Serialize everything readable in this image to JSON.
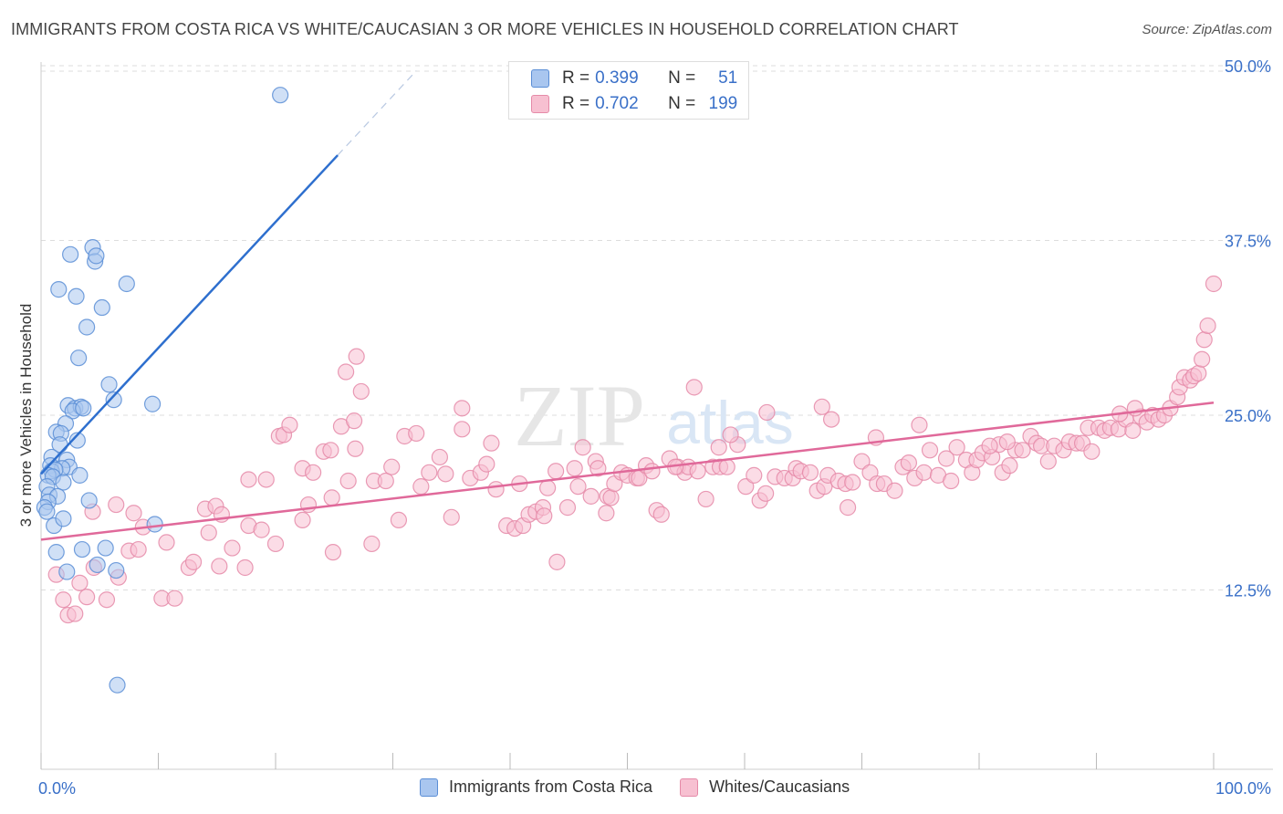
{
  "title": "IMMIGRANTS FROM COSTA RICA VS WHITE/CAUCASIAN 3 OR MORE VEHICLES IN HOUSEHOLD CORRELATION CHART",
  "source": "Source: ZipAtlas.com",
  "watermark": {
    "zip": "ZIP",
    "atlas": "atlas"
  },
  "stats": {
    "r_label": "R =",
    "n_label": "N =",
    "series1": {
      "r": "0.399",
      "n": "51"
    },
    "series2": {
      "r": "0.702",
      "n": "199"
    }
  },
  "colors": {
    "blue_fill": "#a9c6ef",
    "blue_stroke": "#5b8ed6",
    "blue_line": "#2e6fce",
    "pink_fill": "#f7c0d1",
    "pink_stroke": "#e58aa8",
    "pink_line": "#e0699a",
    "grid": "#dddddd",
    "tick_label": "#3a70c8"
  },
  "chart_data": {
    "type": "scatter",
    "title": "IMMIGRANTS FROM COSTA RICA VS WHITE/CAUCASIAN 3 OR MORE VEHICLES IN HOUSEHOLD CORRELATION CHART",
    "xlabel": "",
    "ylabel": "3 or more Vehicles in Household",
    "xlim": [
      0,
      100
    ],
    "ylim": [
      0,
      52
    ],
    "x_tick_labels": [
      "0.0%",
      "100.0%"
    ],
    "y_ticks": [
      12.5,
      25.0,
      37.5,
      50.0
    ],
    "y_tick_labels": [
      "12.5%",
      "25.0%",
      "37.5%",
      "50.0%"
    ],
    "legend_position": "bottom-center",
    "series": [
      {
        "name": "Immigrants from Costa Rica",
        "r": 0.399,
        "n": 51,
        "trend": {
          "x1": 0,
          "y1": 20.8,
          "x2": 25.3,
          "y2": 43.6,
          "dash_to_x": 32.0
        },
        "points": [
          [
            20.4,
            47.9
          ],
          [
            4.4,
            37.0
          ],
          [
            2.5,
            36.5
          ],
          [
            4.6,
            36.0
          ],
          [
            4.7,
            36.4
          ],
          [
            7.3,
            34.4
          ],
          [
            1.5,
            34.0
          ],
          [
            3.0,
            33.5
          ],
          [
            5.2,
            32.7
          ],
          [
            3.9,
            31.3
          ],
          [
            3.2,
            29.1
          ],
          [
            5.8,
            27.2
          ],
          [
            6.2,
            26.1
          ],
          [
            9.5,
            25.8
          ],
          [
            2.3,
            25.7
          ],
          [
            2.9,
            25.5
          ],
          [
            3.4,
            25.6
          ],
          [
            2.7,
            25.3
          ],
          [
            3.6,
            25.5
          ],
          [
            2.1,
            24.4
          ],
          [
            1.3,
            23.8
          ],
          [
            1.7,
            23.7
          ],
          [
            3.1,
            23.2
          ],
          [
            1.6,
            22.9
          ],
          [
            0.9,
            22.0
          ],
          [
            2.2,
            21.8
          ],
          [
            0.8,
            21.4
          ],
          [
            2.4,
            21.3
          ],
          [
            1.8,
            21.2
          ],
          [
            0.9,
            21.0
          ],
          [
            1.2,
            21.1
          ],
          [
            0.6,
            20.7
          ],
          [
            1.0,
            20.6
          ],
          [
            3.3,
            20.7
          ],
          [
            1.9,
            20.2
          ],
          [
            0.5,
            19.9
          ],
          [
            0.7,
            19.3
          ],
          [
            1.4,
            19.2
          ],
          [
            4.1,
            18.9
          ],
          [
            0.6,
            18.8
          ],
          [
            0.3,
            18.4
          ],
          [
            0.5,
            18.1
          ],
          [
            9.7,
            17.2
          ],
          [
            1.1,
            17.1
          ],
          [
            1.9,
            17.6
          ],
          [
            1.3,
            15.2
          ],
          [
            3.5,
            15.4
          ],
          [
            5.5,
            15.5
          ],
          [
            4.8,
            14.3
          ],
          [
            2.2,
            13.8
          ],
          [
            6.4,
            13.9
          ],
          [
            6.5,
            5.7
          ]
        ]
      },
      {
        "name": "Whites/Caucasians",
        "r": 0.702,
        "n": 199,
        "trend": {
          "x1": 0,
          "y1": 16.1,
          "x2": 100,
          "y2": 25.9
        },
        "points": [
          [
            1.3,
            13.6
          ],
          [
            2.3,
            10.7
          ],
          [
            2.9,
            10.8
          ],
          [
            1.9,
            11.8
          ],
          [
            3.3,
            13.0
          ],
          [
            3.9,
            12.0
          ],
          [
            5.6,
            11.8
          ],
          [
            6.6,
            13.4
          ],
          [
            4.5,
            14.1
          ],
          [
            7.5,
            15.3
          ],
          [
            8.3,
            15.4
          ],
          [
            10.3,
            11.9
          ],
          [
            11.4,
            11.9
          ],
          [
            12.6,
            14.1
          ],
          [
            13.0,
            14.5
          ],
          [
            15.2,
            14.2
          ],
          [
            17.4,
            14.1
          ],
          [
            8.7,
            17.0
          ],
          [
            10.7,
            15.9
          ],
          [
            14.3,
            16.6
          ],
          [
            16.3,
            15.5
          ],
          [
            17.7,
            17.1
          ],
          [
            18.8,
            16.8
          ],
          [
            20.0,
            15.8
          ],
          [
            22.3,
            17.5
          ],
          [
            24.9,
            15.2
          ],
          [
            28.2,
            15.8
          ],
          [
            6.4,
            18.6
          ],
          [
            4.4,
            18.1
          ],
          [
            7.9,
            18.0
          ],
          [
            14.0,
            18.3
          ],
          [
            14.9,
            18.5
          ],
          [
            15.4,
            17.9
          ],
          [
            17.7,
            20.4
          ],
          [
            19.2,
            20.4
          ],
          [
            20.3,
            23.5
          ],
          [
            20.7,
            23.6
          ],
          [
            21.2,
            24.3
          ],
          [
            22.3,
            21.2
          ],
          [
            22.8,
            18.6
          ],
          [
            23.2,
            20.9
          ],
          [
            24.1,
            22.4
          ],
          [
            24.7,
            22.5
          ],
          [
            25.6,
            24.2
          ],
          [
            26.0,
            28.1
          ],
          [
            26.9,
            29.2
          ],
          [
            27.3,
            26.7
          ],
          [
            26.7,
            24.6
          ],
          [
            24.8,
            19.1
          ],
          [
            26.2,
            20.3
          ],
          [
            26.8,
            22.6
          ],
          [
            28.4,
            20.3
          ],
          [
            29.4,
            20.3
          ],
          [
            29.9,
            21.3
          ],
          [
            30.5,
            17.5
          ],
          [
            31.0,
            23.5
          ],
          [
            32.0,
            23.7
          ],
          [
            32.4,
            19.9
          ],
          [
            33.1,
            20.9
          ],
          [
            34.0,
            22.0
          ],
          [
            34.5,
            20.8
          ],
          [
            35.0,
            17.7
          ],
          [
            35.9,
            24.0
          ],
          [
            35.9,
            25.5
          ],
          [
            36.6,
            20.5
          ],
          [
            37.5,
            20.9
          ],
          [
            38.0,
            21.5
          ],
          [
            38.4,
            23.0
          ],
          [
            38.8,
            19.7
          ],
          [
            39.7,
            17.1
          ],
          [
            40.4,
            16.9
          ],
          [
            40.8,
            20.1
          ],
          [
            41.1,
            17.1
          ],
          [
            41.6,
            17.9
          ],
          [
            42.2,
            18.1
          ],
          [
            42.8,
            18.4
          ],
          [
            42.9,
            17.8
          ],
          [
            43.2,
            19.8
          ],
          [
            43.9,
            21.0
          ],
          [
            44.0,
            14.5
          ],
          [
            45.5,
            21.2
          ],
          [
            45.8,
            19.9
          ],
          [
            46.2,
            22.7
          ],
          [
            46.9,
            19.2
          ],
          [
            47.3,
            21.7
          ],
          [
            48.3,
            19.2
          ],
          [
            48.6,
            19.1
          ],
          [
            48.9,
            20.1
          ],
          [
            49.5,
            20.9
          ],
          [
            50.0,
            20.7
          ],
          [
            50.8,
            20.5
          ],
          [
            48.2,
            18.0
          ],
          [
            51.0,
            20.5
          ],
          [
            51.6,
            21.4
          ],
          [
            52.1,
            21.0
          ],
          [
            52.5,
            18.2
          ],
          [
            52.9,
            17.9
          ],
          [
            53.6,
            21.9
          ],
          [
            54.3,
            21.3
          ],
          [
            54.9,
            20.9
          ],
          [
            55.2,
            21.3
          ],
          [
            56.0,
            21.0
          ],
          [
            56.7,
            19.0
          ],
          [
            57.3,
            21.3
          ],
          [
            57.9,
            21.3
          ],
          [
            57.8,
            22.7
          ],
          [
            58.5,
            21.3
          ],
          [
            59.4,
            22.9
          ],
          [
            60.1,
            19.9
          ],
          [
            60.8,
            20.7
          ],
          [
            61.3,
            18.9
          ],
          [
            61.8,
            19.4
          ],
          [
            62.6,
            20.6
          ],
          [
            63.4,
            20.5
          ],
          [
            64.1,
            20.5
          ],
          [
            64.4,
            21.2
          ],
          [
            64.8,
            21.0
          ],
          [
            65.6,
            20.9
          ],
          [
            66.2,
            19.6
          ],
          [
            66.8,
            19.9
          ],
          [
            67.1,
            20.7
          ],
          [
            68.0,
            20.3
          ],
          [
            68.6,
            20.1
          ],
          [
            68.8,
            18.4
          ],
          [
            69.2,
            20.2
          ],
          [
            70.0,
            21.7
          ],
          [
            70.7,
            20.9
          ],
          [
            71.3,
            20.1
          ],
          [
            71.9,
            20.1
          ],
          [
            72.8,
            19.6
          ],
          [
            73.5,
            21.3
          ],
          [
            74.0,
            21.6
          ],
          [
            74.5,
            20.5
          ],
          [
            75.3,
            20.9
          ],
          [
            75.8,
            22.5
          ],
          [
            76.5,
            20.7
          ],
          [
            77.2,
            21.9
          ],
          [
            77.6,
            20.3
          ],
          [
            78.1,
            22.7
          ],
          [
            78.9,
            21.8
          ],
          [
            79.4,
            20.9
          ],
          [
            79.8,
            21.8
          ],
          [
            80.3,
            22.3
          ],
          [
            81.1,
            22.0
          ],
          [
            81.7,
            22.9
          ],
          [
            82.0,
            20.9
          ],
          [
            82.6,
            21.4
          ],
          [
            83.1,
            22.5
          ],
          [
            83.7,
            22.5
          ],
          [
            84.4,
            23.5
          ],
          [
            84.9,
            23.0
          ],
          [
            85.3,
            22.8
          ],
          [
            85.9,
            21.7
          ],
          [
            86.4,
            22.8
          ],
          [
            87.2,
            22.5
          ],
          [
            87.7,
            23.1
          ],
          [
            88.3,
            23.0
          ],
          [
            88.8,
            23.0
          ],
          [
            89.3,
            24.1
          ],
          [
            89.6,
            22.4
          ],
          [
            90.2,
            24.1
          ],
          [
            90.7,
            23.9
          ],
          [
            91.2,
            24.1
          ],
          [
            91.9,
            24.0
          ],
          [
            92.5,
            24.7
          ],
          [
            93.1,
            23.9
          ],
          [
            93.8,
            24.9
          ],
          [
            94.3,
            24.5
          ],
          [
            94.8,
            25.0
          ],
          [
            95.3,
            24.7
          ],
          [
            95.8,
            25.0
          ],
          [
            96.3,
            25.5
          ],
          [
            96.9,
            26.3
          ],
          [
            97.1,
            27.0
          ],
          [
            97.5,
            27.7
          ],
          [
            98.0,
            27.5
          ],
          [
            98.3,
            27.8
          ],
          [
            98.7,
            28.0
          ],
          [
            99.0,
            29.0
          ],
          [
            99.2,
            30.4
          ],
          [
            99.5,
            31.4
          ],
          [
            100.0,
            34.4
          ],
          [
            67.4,
            24.7
          ],
          [
            55.7,
            27.0
          ],
          [
            61.9,
            25.2
          ],
          [
            66.6,
            25.6
          ],
          [
            92.0,
            25.1
          ],
          [
            93.3,
            25.5
          ],
          [
            74.9,
            24.3
          ],
          [
            71.2,
            23.4
          ],
          [
            82.4,
            23.1
          ],
          [
            80.9,
            22.8
          ],
          [
            58.8,
            23.6
          ],
          [
            54.1,
            21.3
          ],
          [
            47.5,
            21.2
          ],
          [
            44.9,
            18.4
          ]
        ]
      }
    ]
  },
  "legend": {
    "items": [
      {
        "label": "Immigrants from Costa Rica"
      },
      {
        "label": "Whites/Caucasians"
      }
    ]
  }
}
